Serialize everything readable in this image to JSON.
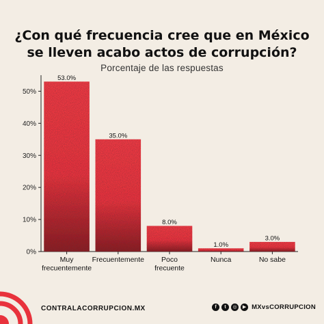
{
  "chart_data": {
    "type": "bar",
    "title_lines": [
      "¿Con qué frecuencia cree que en México",
      "se lleven acabo actos de corrupción?"
    ],
    "subtitle": "Porcentaje de las respuestas",
    "categories": [
      [
        "Muy",
        "frecuentemente"
      ],
      [
        "Frecuentemente"
      ],
      [
        "Poco",
        "frecuente"
      ],
      [
        "Nunca"
      ],
      [
        "No sabe"
      ]
    ],
    "values": [
      53.0,
      35.0,
      8.0,
      1.0,
      3.0
    ],
    "value_labels": [
      "53.0%",
      "35.0%",
      "8.0%",
      "1.0%",
      "3.0%"
    ],
    "y_ticks": [
      0,
      10,
      20,
      30,
      40,
      50
    ],
    "y_tick_labels": [
      "0%",
      "10%",
      "20%",
      "30%",
      "40%",
      "50%"
    ],
    "ylim": [
      0,
      55
    ],
    "grid": false,
    "bar_color": "#e8323c",
    "bar_shadow_color": "#2a0f10"
  },
  "footer": {
    "brand": "CONTRALACORRUPCION.MX",
    "icons": [
      "facebook-icon",
      "twitter-icon",
      "instagram-icon",
      "youtube-icon"
    ],
    "handle": "MXvsCORRUPCION"
  },
  "colors": {
    "background": "#f3ede4",
    "accent": "#e8323c",
    "text": "#111111"
  }
}
